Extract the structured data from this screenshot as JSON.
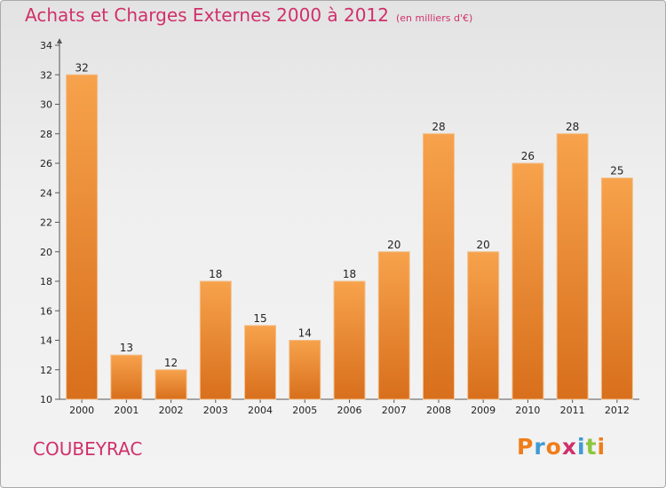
{
  "page": {
    "city": "COUBEYRAC",
    "logo": "Proxiti"
  },
  "chart_data": {
    "type": "bar",
    "title": "Achats et Charges Externes 2000 à 2012",
    "subtitle": "(en milliers d'€)",
    "xlabel": "",
    "ylabel": "",
    "categories": [
      "2000",
      "2001",
      "2002",
      "2003",
      "2004",
      "2005",
      "2006",
      "2007",
      "2008",
      "2009",
      "2010",
      "2011",
      "2012"
    ],
    "values": [
      32,
      13,
      12,
      18,
      15,
      14,
      18,
      20,
      28,
      20,
      26,
      28,
      25
    ],
    "ylim": [
      10,
      34
    ],
    "yticks": [
      10,
      12,
      14,
      16,
      18,
      20,
      22,
      24,
      26,
      28,
      30,
      32,
      34
    ],
    "grid": false,
    "legend": "none",
    "colors": {
      "bar_light": "#f7a24c",
      "bar_dark": "#d86f1c",
      "bar_edge": "#f2c08e",
      "title": "#d0306a",
      "logo": [
        "#f07d1a",
        "#3f9ad6",
        "#f07d1a",
        "#d0306a",
        "#3f9ad6",
        "#8cc63f",
        "#f07d1a"
      ]
    }
  }
}
